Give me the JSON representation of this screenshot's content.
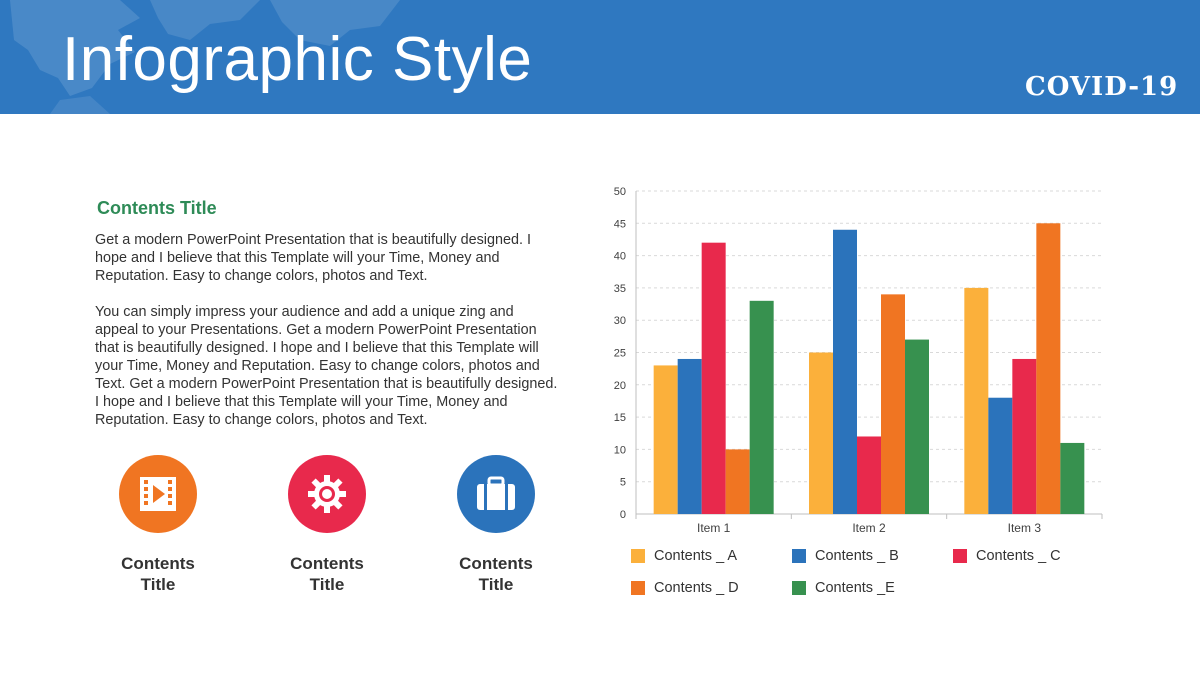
{
  "header": {
    "title": "Infographic Style",
    "badge": "COVID-19"
  },
  "content": {
    "title": "Contents Title",
    "para1_lines": [
      "Get a modern PowerPoint  Presentation that is beautifully designed. I",
      "hope and I believe that this Template will your Time, Money and",
      "Reputation. Easy to change colors, photos and Text."
    ],
    "para2_lines": [
      "You can simply impress your audience and add a unique zing and",
      "appeal to your Presentations.  Get a modern PowerPoint  Presentation",
      "that is beautifully designed. I hope and I believe that this Template will",
      "your Time, Money and Reputation. Easy to change colors, photos and",
      "Text. Get a modern PowerPoint  Presentation that is beautifully designed.",
      "I hope and I believe that this Template will your Time, Money and",
      "Reputation. Easy to change colors, photos and Text."
    ]
  },
  "icons": [
    {
      "name": "video-icon",
      "color": "#f07522",
      "label_line1": "Contents",
      "label_line2": "Title"
    },
    {
      "name": "gear-icon",
      "color": "#e8294c",
      "label_line1": "Contents",
      "label_line2": "Title"
    },
    {
      "name": "briefcase-icon",
      "color": "#2b73bb",
      "label_line1": "Contents",
      "label_line2": "Title"
    }
  ],
  "colors": {
    "header": "#2f78c0",
    "accent_green": "#2e8b57"
  },
  "chart_data": {
    "type": "bar",
    "categories": [
      "Item 1",
      "Item 2",
      "Item 3"
    ],
    "series": [
      {
        "name": "Contents _ A",
        "color": "#fbb03b",
        "values": [
          23,
          25,
          35
        ]
      },
      {
        "name": "Contents _ B",
        "color": "#2b73bb",
        "values": [
          24,
          44,
          18
        ]
      },
      {
        "name": "Contents _ C",
        "color": "#e8294c",
        "values": [
          42,
          12,
          24
        ]
      },
      {
        "name": "Contents _ D",
        "color": "#f07522",
        "values": [
          10,
          34,
          45
        ]
      },
      {
        "name": "Contents _E",
        "color": "#37914f",
        "values": [
          33,
          27,
          11
        ]
      }
    ],
    "ylim": [
      0,
      50
    ],
    "yticks": [
      0,
      5,
      10,
      15,
      20,
      25,
      30,
      35,
      40,
      45,
      50
    ],
    "grid": true,
    "legend_position": "bottom",
    "title": "",
    "xlabel": "",
    "ylabel": ""
  }
}
